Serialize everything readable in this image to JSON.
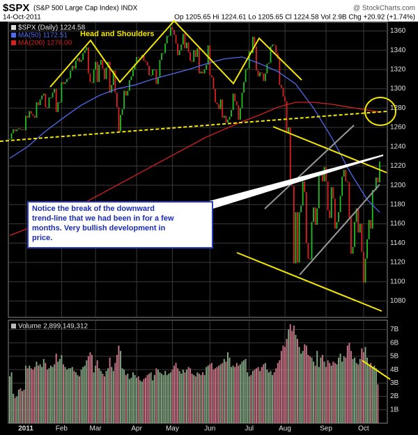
{
  "chart_data": {
    "type": "candlestick",
    "title": "$SPX",
    "subtitle": "(S&P 500 Large Cap Index) INDX",
    "source": "@ StockCharts.com",
    "date": "14-Oct-2011",
    "stats": "Op 1205.65 Hi 1224.61 Lo 1205.65 Cl 1224.58 Vol 2.9B Chg +20.92 (+1.74%)",
    "up_color": "#22c022",
    "down_color": "#e02020",
    "grid": true,
    "xlim": [
      0,
      207
    ],
    "xticks": [
      {
        "value": 9,
        "label": "2011"
      },
      {
        "value": 29,
        "label": "Feb"
      },
      {
        "value": 48,
        "label": "Mar"
      },
      {
        "value": 71,
        "label": "Apr"
      },
      {
        "value": 91,
        "label": "May"
      },
      {
        "value": 112,
        "label": "Jun"
      },
      {
        "value": 134,
        "label": "Jul"
      },
      {
        "value": 154,
        "label": "Aug"
      },
      {
        "value": 177,
        "label": "Sep"
      },
      {
        "value": 198,
        "label": "Oct"
      }
    ],
    "ylim": [
      1063,
      1369
    ],
    "yticks": [
      1080,
      1100,
      1120,
      1140,
      1160,
      1180,
      1200,
      1220,
      1240,
      1260,
      1280,
      1300,
      1320,
      1340,
      1360
    ],
    "series": [
      {
        "name": "$SPX (Daily) 1224.58",
        "color": "#dddddd",
        "values": [
          1248,
          1254,
          1258,
          1256,
          1258,
          1259,
          1258,
          1258,
          1257,
          1272,
          1270,
          1277,
          1274,
          1272,
          1270,
          1286,
          1283,
          1289,
          1293,
          1295,
          1281,
          1280,
          1291,
          1291,
          1296,
          1300,
          1276,
          1286,
          1286,
          1307,
          1305,
          1307,
          1310,
          1311,
          1319,
          1324,
          1321,
          1329,
          1332,
          1328,
          1330,
          1337,
          1340,
          1343,
          1316,
          1307,
          1306,
          1320,
          1328,
          1307,
          1325,
          1330,
          1321,
          1310,
          1322,
          1328,
          1296,
          1304,
          1319,
          1296,
          1281,
          1256,
          1273,
          1279,
          1298,
          1293,
          1298,
          1309,
          1313,
          1320,
          1326,
          1333,
          1332,
          1332,
          1335,
          1329,
          1328,
          1324,
          1314,
          1314,
          1320,
          1320,
          1305,
          1312,
          1330,
          1337,
          1337,
          1347,
          1355,
          1355,
          1364,
          1361,
          1356,
          1347,
          1335,
          1340,
          1346,
          1357,
          1342,
          1348,
          1338,
          1329,
          1328,
          1340,
          1333,
          1342,
          1316,
          1318,
          1316,
          1320,
          1325,
          1345,
          1314,
          1312,
          1300,
          1286,
          1284,
          1279,
          1289,
          1270,
          1272,
          1265,
          1268,
          1271,
          1278,
          1295,
          1287,
          1283,
          1268,
          1280,
          1296,
          1307,
          1320,
          1321,
          1339,
          1337,
          1354,
          1344,
          1319,
          1313,
          1317,
          1316,
          1308,
          1316,
          1326,
          1327,
          1344,
          1346,
          1345,
          1337,
          1331,
          1304,
          1301,
          1292,
          1287,
          1254,
          1260,
          1200,
          1199,
          1119,
          1172,
          1120,
          1172,
          1179,
          1204,
          1193,
          1140,
          1124,
          1123,
          1162,
          1177,
          1159,
          1176,
          1210,
          1212,
          1204,
          1219,
          1204,
          1174,
          1166,
          1198,
          1186,
          1155,
          1162,
          1172,
          1189,
          1209,
          1216,
          1204,
          1203,
          1166,
          1129,
          1136,
          1162,
          1176,
          1151,
          1160,
          1131,
          1099,
          1124,
          1144,
          1164,
          1155,
          1195,
          1195,
          1208,
          1203,
          1224.58
        ]
      },
      {
        "name": "MA(50) 1172.51",
        "color": "#4f6bed",
        "x": [
          0,
          10,
          20,
          30,
          40,
          50,
          60,
          70,
          80,
          90,
          100,
          110,
          120,
          130,
          140,
          150,
          160,
          170,
          180,
          190,
          200,
          207
        ],
        "values": [
          1228,
          1240,
          1256,
          1270,
          1283,
          1293,
          1300,
          1304,
          1310,
          1315,
          1320,
          1326,
          1331,
          1333,
          1326,
          1318,
          1305,
          1280,
          1250,
          1215,
          1185,
          1172
        ]
      },
      {
        "name": "MA(200) 1276.00",
        "color": "#d42020",
        "x": [
          0,
          10,
          20,
          30,
          40,
          50,
          60,
          70,
          80,
          90,
          100,
          110,
          120,
          130,
          140,
          150,
          160,
          170,
          180,
          190,
          200,
          207
        ],
        "values": [
          1148,
          1155,
          1163,
          1172,
          1180,
          1190,
          1200,
          1210,
          1220,
          1230,
          1240,
          1250,
          1258,
          1266,
          1273,
          1281,
          1286,
          1286,
          1284,
          1281,
          1278,
          1276
        ]
      }
    ],
    "volume": {
      "name": "Volume 2,899,149,312",
      "color": "#bbbbbb",
      "ylim": [
        0,
        7.7
      ],
      "yticks": [
        {
          "value": 1,
          "label": "1B"
        },
        {
          "value": 2,
          "label": "2B"
        },
        {
          "value": 3,
          "label": "3B"
        },
        {
          "value": 4,
          "label": "4B"
        },
        {
          "value": 5,
          "label": "5B"
        },
        {
          "value": 6,
          "label": "6B"
        },
        {
          "value": 7,
          "label": "7B"
        }
      ],
      "values": [
        3.5,
        3.8,
        2.2,
        1.9,
        2.0,
        2.5,
        2.6,
        2.4,
        2.5,
        4.3,
        4.1,
        4.3,
        4.1,
        4.0,
        4.2,
        4.6,
        4.3,
        4.4,
        4.2,
        4.8,
        4.5,
        4.0,
        4.1,
        4.3,
        4.2,
        4.4,
        5.2,
        4.6,
        4.8,
        5.1,
        4.4,
        4.2,
        4.0,
        4.1,
        4.1,
        4.2,
        3.9,
        3.8,
        3.6,
        3.5,
        4.0,
        4.2,
        4.3,
        4.7,
        5.0,
        5.3,
        5.1,
        3.8,
        4.3,
        4.7,
        4.1,
        3.9,
        3.7,
        3.5,
        3.9,
        4.1,
        4.9,
        4.2,
        3.9,
        4.5,
        5.1,
        5.8,
        5.4,
        4.1,
        4.0,
        3.6,
        3.7,
        3.3,
        3.4,
        3.8,
        3.6,
        3.4,
        3.5,
        3.2,
        3.1,
        3.3,
        3.4,
        3.6,
        3.7,
        3.8,
        3.2,
        3.6,
        4.1,
        4.0,
        3.8,
        3.7,
        3.6,
        3.9,
        3.6,
        3.7,
        3.8,
        4.0,
        4.3,
        4.5,
        4.1,
        3.9,
        3.7,
        4.0,
        3.8,
        4.0,
        4.2,
        4.1,
        3.7,
        3.6,
        3.5,
        3.8,
        3.7,
        3.6,
        3.8,
        3.6,
        4.2,
        4.3,
        4.4,
        4.5,
        4.0,
        4.1,
        4.2,
        4.3,
        4.4,
        4.5,
        4.8,
        4.6,
        5.3,
        4.9,
        4.2,
        4.3,
        4.2,
        4.5,
        4.3,
        4.4,
        4.6,
        4.7,
        4.8,
        3.8,
        3.5,
        3.6,
        3.9,
        4.0,
        4.1,
        4.2,
        3.9,
        4.2,
        4.4,
        4.5,
        4.0,
        3.8,
        3.9,
        3.6,
        3.8,
        4.1,
        4.5,
        4.7,
        5.4,
        5.8,
        5.7,
        6.3,
        7.0,
        7.4,
        6.9,
        7.3,
        6.6,
        6.3,
        5.7,
        5.2,
        5.4,
        5.9,
        5.8,
        5.1,
        5.0,
        4.9,
        4.6,
        4.3,
        5.4,
        4.2,
        4.9,
        5.1,
        4.6,
        4.2,
        4.7,
        4.5,
        4.3,
        4.6,
        4.5,
        4.4,
        4.9,
        5.2,
        4.6,
        5.0,
        4.9,
        5.8,
        6.0,
        5.4,
        4.8,
        4.9,
        4.5,
        4.4,
        4.8,
        5.6,
        5.3,
        5.7,
        4.9,
        4.4,
        4.5,
        4.2,
        4.3,
        4.1,
        2.9
      ]
    },
    "annotations": {
      "pattern": "Head and Shoulders",
      "callout": [
        "Notice the break of the downward",
        "trend-line that we had been in for a few",
        "months. Very bullish development in",
        "price."
      ]
    }
  }
}
